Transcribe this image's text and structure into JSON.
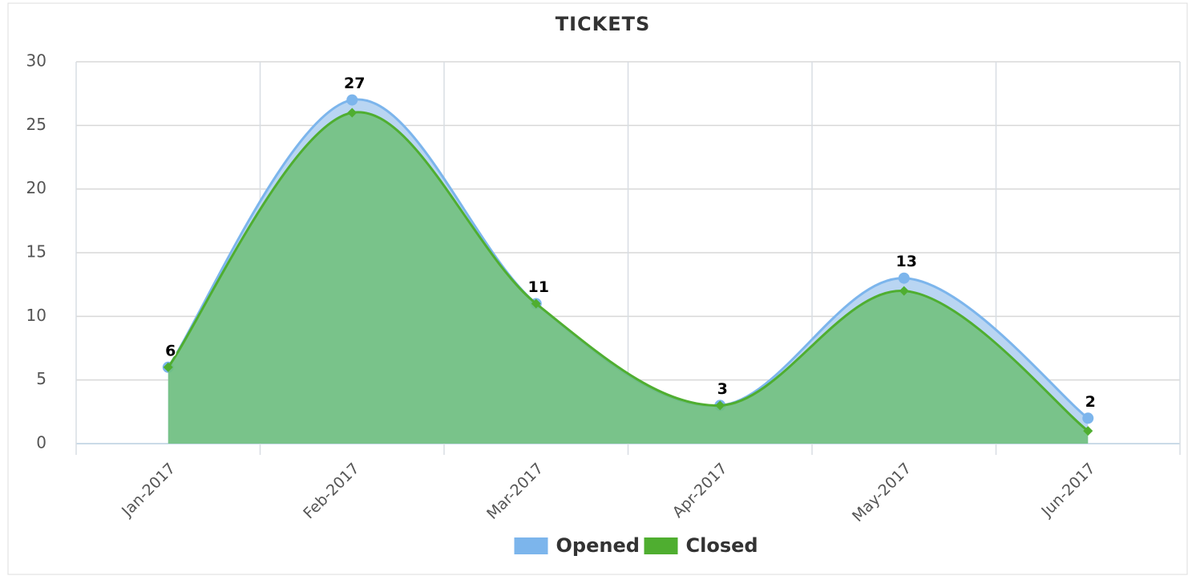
{
  "chart_data": {
    "type": "areaspline",
    "title": "TICKETS",
    "categories": [
      "Jan-2017",
      "Feb-2017",
      "Mar-2017",
      "Apr-2017",
      "May-2017",
      "Jun-2017"
    ],
    "series": [
      {
        "name": "Opened",
        "color": "#7cb5ec",
        "values": [
          6,
          27,
          11,
          3,
          13,
          2
        ],
        "data_labels": true
      },
      {
        "name": "Closed",
        "color": "#4fae30",
        "values": [
          6,
          26,
          11,
          3,
          12,
          1
        ],
        "data_labels": false
      }
    ],
    "ylim": [
      0,
      30
    ],
    "yticks": [
      0,
      5,
      10,
      15,
      20,
      25,
      30
    ],
    "grid": true,
    "legend": "bottom"
  }
}
